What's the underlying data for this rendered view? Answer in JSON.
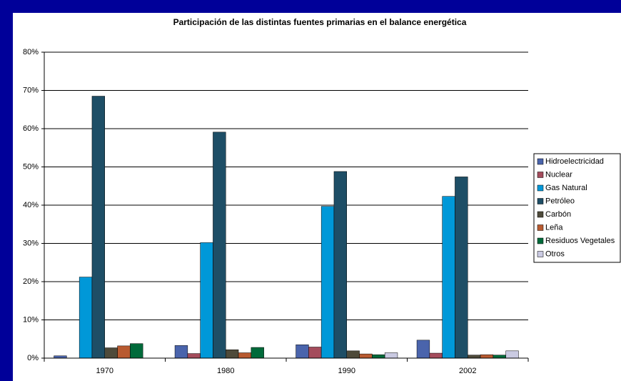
{
  "chart_data": {
    "type": "bar",
    "title": "Participación de las distintas fuentes primarias en el balance energética",
    "categories": [
      "1970",
      "1980",
      "1990",
      "2002"
    ],
    "series": [
      {
        "name": "Hidroelectricidad",
        "color": "#4a64ac",
        "values": [
          0.6,
          3.3,
          3.5,
          4.7
        ]
      },
      {
        "name": "Nuclear",
        "color": "#a44c5c",
        "values": [
          0,
          1.2,
          2.9,
          1.3
        ]
      },
      {
        "name": "Gas Natural",
        "color": "#0098d8",
        "values": [
          21.2,
          30.2,
          39.7,
          42.3
        ]
      },
      {
        "name": "Petróleo",
        "color": "#1e4e66",
        "values": [
          68.5,
          59.1,
          48.8,
          47.4
        ]
      },
      {
        "name": "Carbón",
        "color": "#4e4a3a",
        "values": [
          2.7,
          2.2,
          1.9,
          0.8
        ]
      },
      {
        "name": "Leña",
        "color": "#b85a30",
        "values": [
          3.2,
          1.4,
          1.1,
          0.9
        ]
      },
      {
        "name": "Residuos Vegetales",
        "color": "#006a3a",
        "values": [
          3.8,
          2.8,
          0.9,
          0.8
        ]
      },
      {
        "name": "Otros",
        "color": "#cacae2",
        "values": [
          0,
          0,
          1.4,
          1.9
        ]
      }
    ],
    "ylim": [
      0,
      80
    ],
    "yticks": [
      {
        "value": 0,
        "label": "0%"
      },
      {
        "value": 10,
        "label": "10%"
      },
      {
        "value": 20,
        "label": "20%"
      },
      {
        "value": 30,
        "label": "30%"
      },
      {
        "value": 40,
        "label": "40%"
      },
      {
        "value": 50,
        "label": "50%"
      },
      {
        "value": 60,
        "label": "60%"
      },
      {
        "value": 70,
        "label": "70%"
      },
      {
        "value": 80,
        "label": "80%"
      }
    ],
    "grid": true,
    "legend": "right"
  }
}
